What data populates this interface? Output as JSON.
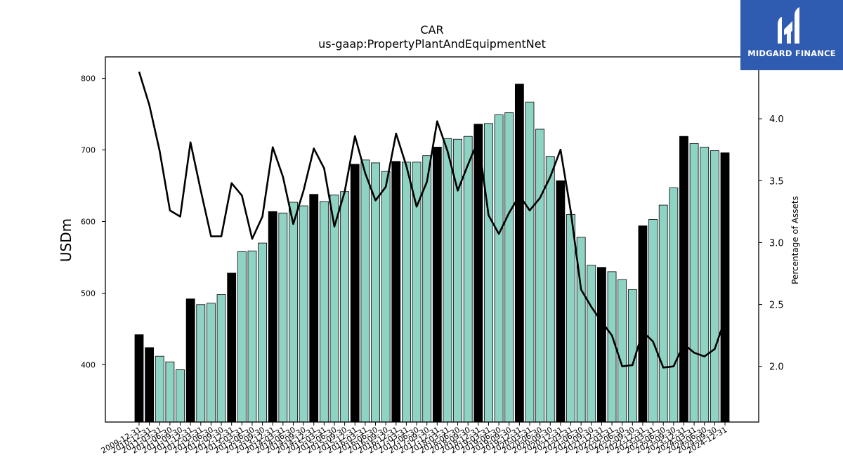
{
  "chart_data": {
    "type": "bar",
    "title": "CAR",
    "subtitle": "us-gaap:PropertyPlantAndEquipmentNet",
    "ylabel": "USDm",
    "y2label": "Percentage of Assets",
    "ylim": [
      320,
      830
    ],
    "y2lim": [
      1.55,
      4.5
    ],
    "yticks": [
      400,
      500,
      600,
      700,
      800
    ],
    "y2ticks": [
      2.0,
      2.5,
      3.0,
      3.5,
      4.0
    ],
    "grid": false,
    "colors": {
      "annual": "#000000",
      "quarterly": "#8fd3c4",
      "line": "#000000"
    },
    "categories": [
      "2009-12-31",
      "2010-12-31",
      "2011-03-31",
      "2011-06-30",
      "2011-09-30",
      "2011-12-31",
      "2012-03-31",
      "2012-06-30",
      "2012-09-30",
      "2012-12-31",
      "2013-03-31",
      "2013-06-30",
      "2013-09-30",
      "2013-12-31",
      "2014-03-31",
      "2014-06-30",
      "2014-09-30",
      "2014-12-31",
      "2015-03-31",
      "2015-06-30",
      "2015-09-30",
      "2015-12-31",
      "2016-03-31",
      "2016-06-30",
      "2016-09-30",
      "2016-12-31",
      "2017-03-31",
      "2017-06-30",
      "2017-09-30",
      "2017-12-31",
      "2018-03-31",
      "2018-06-30",
      "2018-09-30",
      "2018-12-31",
      "2019-03-31",
      "2019-06-30",
      "2019-09-30",
      "2019-12-31",
      "2020-03-31",
      "2020-06-30",
      "2020-09-30",
      "2020-12-31",
      "2021-03-31",
      "2021-06-30",
      "2021-09-30",
      "2021-12-31",
      "2022-03-31",
      "2022-06-30",
      "2022-09-30",
      "2022-12-31",
      "2023-03-31",
      "2023-06-30",
      "2023-09-30",
      "2023-12-31",
      "2024-03-31",
      "2024-06-30",
      "2024-09-30",
      "2024-12-31"
    ],
    "annual": [
      true,
      true,
      false,
      false,
      false,
      true,
      false,
      false,
      false,
      true,
      false,
      false,
      false,
      true,
      false,
      false,
      false,
      true,
      false,
      false,
      false,
      true,
      false,
      false,
      false,
      true,
      false,
      false,
      false,
      true,
      false,
      false,
      false,
      true,
      false,
      false,
      false,
      true,
      false,
      false,
      false,
      true,
      false,
      false,
      false,
      true,
      false,
      false,
      false,
      true,
      false,
      false,
      false,
      true,
      false,
      false,
      false,
      true
    ],
    "series": [
      {
        "values": [
          442,
          424,
          412,
          404,
          393,
          492,
          484,
          486,
          498,
          528,
          558,
          559,
          570,
          614,
          612,
          627,
          622,
          638,
          628,
          637,
          642,
          680,
          686,
          682,
          670,
          684,
          683,
          683,
          692,
          704,
          716,
          715,
          719,
          736,
          737,
          749,
          752,
          792,
          767,
          729,
          691,
          657,
          610,
          578,
          539,
          536,
          530,
          519,
          505,
          594,
          603,
          623,
          647,
          719,
          709,
          704,
          699,
          696
        ]
      },
      {
        "values": [
          4.38,
          4.11,
          3.74,
          3.26,
          3.21,
          3.81,
          3.42,
          3.05,
          3.05,
          3.48,
          3.38,
          3.03,
          3.21,
          3.77,
          3.53,
          3.15,
          3.42,
          3.76,
          3.6,
          3.13,
          3.41,
          3.86,
          3.56,
          3.34,
          3.45,
          3.88,
          3.62,
          3.29,
          3.49,
          3.98,
          3.74,
          3.42,
          3.63,
          3.83,
          3.22,
          3.07,
          3.24,
          3.38,
          3.26,
          3.36,
          3.53,
          3.75,
          3.25,
          2.62,
          2.48,
          2.36,
          2.25,
          2.0,
          2.01,
          2.28,
          2.2,
          1.99,
          2.0,
          2.18,
          2.11,
          2.08,
          2.14,
          2.38
        ]
      }
    ]
  },
  "logo": {
    "text": "MIDGARD FINANCE"
  }
}
